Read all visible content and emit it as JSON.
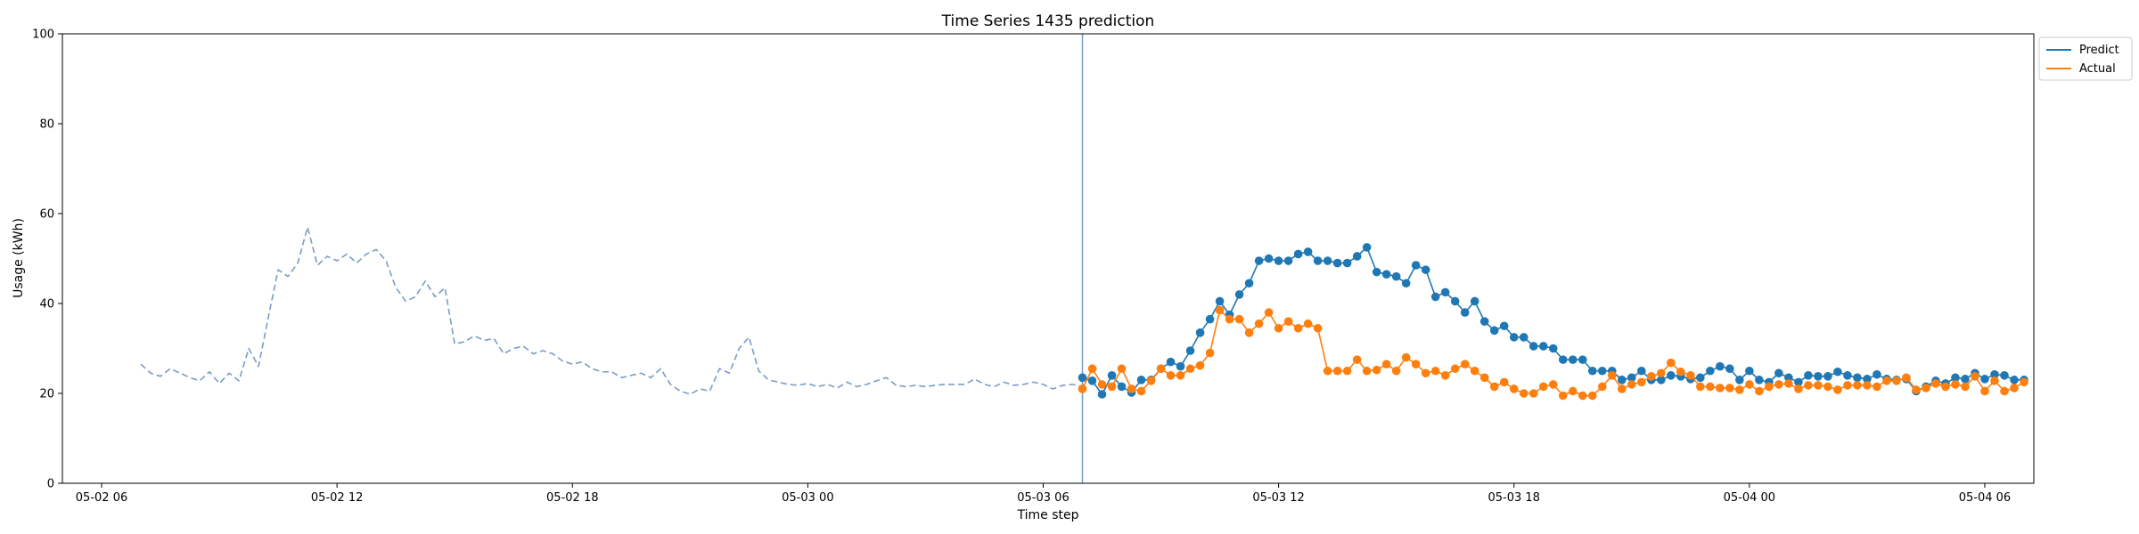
{
  "chart_data": {
    "type": "line",
    "title": "Time Series 1435 prediction",
    "xlabel": "Time step",
    "ylabel": "Usage (kWh)",
    "ylim": [
      0,
      100
    ],
    "yticks": [
      0,
      20,
      40,
      60,
      80,
      100
    ],
    "xlim": [
      "2025-05-02T05:00",
      "2025-05-04T07:15"
    ],
    "xticks": [
      {
        "t": "2025-05-02T06:00",
        "label": "05-02 06"
      },
      {
        "t": "2025-05-02T12:00",
        "label": "05-02 12"
      },
      {
        "t": "2025-05-02T18:00",
        "label": "05-02 18"
      },
      {
        "t": "2025-05-03T00:00",
        "label": "05-03 00"
      },
      {
        "t": "2025-05-03T06:00",
        "label": "05-03 06"
      },
      {
        "t": "2025-05-03T12:00",
        "label": "05-03 12"
      },
      {
        "t": "2025-05-03T18:00",
        "label": "05-03 18"
      },
      {
        "t": "2025-05-04T00:00",
        "label": "05-04 00"
      },
      {
        "t": "2025-05-04T06:00",
        "label": "05-04 06"
      }
    ],
    "grid": false,
    "legend_position": "outside-top-right",
    "forecast_start": "2025-05-03T07:00",
    "colors": {
      "predict": "#1f77b4",
      "actual": "#ff7f0e",
      "history": "#7a9cc6",
      "divider": "#7a9cc6"
    },
    "series": [
      {
        "name": "",
        "style": "dashed",
        "start": "2025-05-02T07:00",
        "interval_minutes": 15,
        "values": [
          26.5,
          24.5,
          23.8,
          25.5,
          24.5,
          23.5,
          22.8,
          24.8,
          22.2,
          24.5,
          22.8,
          30.0,
          26.0,
          37.0,
          47.5,
          46.0,
          49.0,
          57.0,
          48.5,
          50.5,
          49.5,
          51.0,
          49.0,
          51.0,
          52.0,
          49.5,
          43.5,
          40.5,
          41.5,
          45.0,
          41.5,
          43.5,
          31.0,
          31.5,
          32.8,
          31.8,
          32.2,
          28.8,
          30.0,
          30.5,
          28.8,
          29.5,
          28.8,
          27.2,
          26.5,
          27.0,
          25.5,
          24.8,
          24.8,
          23.5,
          24.0,
          24.5,
          23.5,
          25.5,
          22.0,
          20.5,
          19.8,
          21.0,
          20.5,
          25.5,
          24.5,
          30.0,
          32.5,
          25.0,
          23.0,
          22.5,
          22.0,
          21.8,
          22.2,
          21.5,
          22.0,
          21.2,
          22.5,
          21.5,
          22.0,
          22.8,
          23.5,
          21.8,
          21.5,
          21.8,
          21.5,
          21.8,
          22.0,
          22.0,
          22.0,
          23.2,
          22.0,
          21.5,
          22.5,
          21.8,
          22.0,
          22.5,
          22.0,
          21.0,
          21.8,
          22.0,
          21.5,
          25.0
        ]
      },
      {
        "name": "Predict",
        "style": "solid-markers",
        "start": "2025-05-03T07:00",
        "interval_minutes": 15,
        "values": [
          23.5,
          22.8,
          19.8,
          24.0,
          21.5,
          20.2,
          23.0,
          23.0,
          25.5,
          27.0,
          26.0,
          29.5,
          33.5,
          36.5,
          40.5,
          37.5,
          42.0,
          44.5,
          49.5,
          50.0,
          49.5,
          49.5,
          51.0,
          51.5,
          49.5,
          49.5,
          49.0,
          49.0,
          50.5,
          52.5,
          47.0,
          46.5,
          46.0,
          44.5,
          48.5,
          47.5,
          41.5,
          42.5,
          40.5,
          38.0,
          40.5,
          36.0,
          34.0,
          35.0,
          32.5,
          32.5,
          30.5,
          30.5,
          30.0,
          27.5,
          27.5,
          27.5,
          25.0,
          25.0,
          25.0,
          23.0,
          23.5,
          25.0,
          23.0,
          23.0,
          24.0,
          23.8,
          23.2,
          23.5,
          25.0,
          26.0,
          25.5,
          23.0,
          25.0,
          23.0,
          22.5,
          24.5,
          23.5,
          22.5,
          24.0,
          23.8,
          23.8,
          24.8,
          24.0,
          23.5,
          23.2,
          24.2,
          23.2,
          23.0,
          23.2,
          20.5,
          21.5,
          22.8,
          22.2,
          23.5,
          23.2,
          24.5,
          23.2,
          24.2,
          24.0,
          23.0,
          23.0
        ]
      },
      {
        "name": "Actual",
        "style": "solid-markers",
        "start": "2025-05-03T07:00",
        "interval_minutes": 15,
        "values": [
          21.0,
          25.5,
          22.0,
          21.5,
          25.5,
          21.0,
          20.5,
          22.8,
          25.5,
          24.0,
          24.0,
          25.5,
          26.2,
          29.0,
          38.5,
          36.5,
          36.5,
          33.5,
          35.5,
          38.0,
          34.5,
          36.0,
          34.5,
          35.5,
          34.5,
          25.0,
          25.0,
          25.0,
          27.5,
          25.0,
          25.2,
          26.5,
          25.0,
          28.0,
          26.5,
          24.5,
          25.0,
          24.0,
          25.5,
          26.5,
          25.0,
          23.5,
          21.5,
          22.5,
          21.0,
          20.0,
          20.0,
          21.5,
          22.0,
          19.5,
          20.5,
          19.5,
          19.5,
          21.5,
          24.0,
          21.0,
          22.0,
          22.5,
          23.8,
          24.5,
          26.8,
          24.8,
          24.0,
          21.5,
          21.5,
          21.2,
          21.2,
          20.8,
          22.0,
          20.5,
          21.5,
          22.0,
          22.2,
          21.0,
          21.8,
          21.8,
          21.5,
          20.8,
          21.8,
          21.8,
          21.8,
          21.5,
          22.8,
          22.8,
          23.5,
          20.8,
          21.2,
          22.2,
          21.5,
          22.0,
          21.5,
          23.8,
          20.5,
          22.8,
          20.5,
          21.2,
          22.5
        ]
      }
    ]
  }
}
